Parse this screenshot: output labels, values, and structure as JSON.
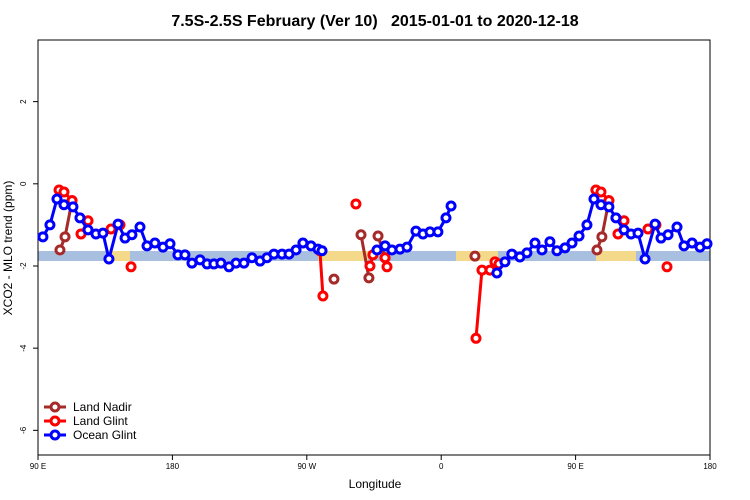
{
  "chart_data": {
    "type": "line",
    "title": "7.5S-2.5S February (Ver 10)   2015-01-01 to 2020-12-18",
    "xlabel": "Longitude",
    "ylabel": "XCO2 - MLO trend (ppm)",
    "xlim": [
      90,
      540
    ],
    "xticks": [
      {
        "value": 90,
        "label": "90 E"
      },
      180,
      {
        "value": 270,
        "label": "90 W"
      },
      {
        "value": 360,
        "label": "0"
      },
      {
        "value": 450,
        "label": "90 E"
      },
      {
        "value": 540,
        "label": "180"
      }
    ],
    "ylim": [
      -6.6,
      3.5
    ],
    "yticks": [
      2,
      0,
      -2,
      -4,
      -6
    ],
    "legend": "bottom-left",
    "series": [
      {
        "name": "Land Nadir",
        "color": "#a52a2a",
        "x": [
          104.7,
          108.1,
          112.8,
          null,
          288.2,
          null,
          306.3,
          311.6,
          null,
          317.7,
          322.4,
          null,
          382.6,
          null,
          464.3,
          467.6,
          472.3
        ],
        "values": [
          -1.61,
          -1.29,
          -0.41,
          null,
          -2.32,
          null,
          -1.24,
          -2.29,
          null,
          -1.27,
          -1.8,
          null,
          -1.76,
          null,
          -1.61,
          -1.29,
          -0.41
        ]
      },
      {
        "name": "Land Glint",
        "color": "#ff0000",
        "x": [
          104.1,
          107.4,
          112.8,
          null,
          118.8,
          123.5,
          null,
          138.9,
          144.9,
          null,
          152.3,
          null,
          278.8,
          280.8,
          null,
          302.9,
          null,
          312.3,
          314.3,
          null,
          322.4,
          323.7,
          null,
          383.3,
          387.3,
          392.7,
          396,
          398.7,
          null,
          463.6,
          467,
          472.3,
          null,
          478.4,
          482.4,
          null,
          498.5,
          503.8,
          null,
          511.2
        ],
        "values": [
          -0.15,
          -0.2,
          -0.41,
          null,
          -1.22,
          -0.9,
          null,
          -1.1,
          -1,
          null,
          -2.02,
          null,
          -1.63,
          -2.73,
          null,
          -0.49,
          null,
          -2,
          -1.73,
          null,
          -1.8,
          -2.02,
          null,
          -3.76,
          -2.1,
          -2.1,
          -1.9,
          -1.95,
          null,
          -0.15,
          -0.2,
          -0.41,
          null,
          -1.22,
          -0.9,
          null,
          -1.1,
          -1,
          null,
          -2.02
        ]
      },
      {
        "name": "Ocean Glint",
        "color": "#0000ff",
        "x": [
          93.3,
          98,
          102.7,
          107.4,
          113.4,
          118.1,
          123.5,
          128.8,
          133.5,
          137.5,
          143.6,
          148.3,
          152.9,
          158.3,
          163,
          168.3,
          173.7,
          178.4,
          183.7,
          188.4,
          193.1,
          198.5,
          203.2,
          207.8,
          212.5,
          217.9,
          222.6,
          227.9,
          233.3,
          238.7,
          243.3,
          248,
          253.4,
          258.1,
          262.8,
          267.4,
          272.8,
          277.5,
          280.2,
          null,
          317,
          322.4,
          327,
          332.4,
          337.1,
          343.1,
          347.8,
          352.5,
          357.8,
          363.2,
          366.6,
          null,
          397.3,
          402.7,
          407.3,
          412.7,
          417.4,
          422.8,
          427.5,
          432.8,
          437.5,
          442.9,
          447.6,
          452.3,
          457.6,
          462.3,
          467,
          472.3,
          477,
          482.4,
          487.1,
          491.8,
          496.5,
          503.2,
          507.2,
          511.9,
          517.9,
          522.6,
          528,
          533.3,
          538
        ],
        "values": [
          -1.29,
          -1,
          -0.37,
          -0.51,
          -0.56,
          -0.83,
          -1.12,
          -1.22,
          -1.2,
          -1.83,
          -0.98,
          -1.32,
          -1.24,
          -1.05,
          -1.51,
          -1.44,
          -1.54,
          -1.46,
          -1.73,
          -1.73,
          -1.93,
          -1.85,
          -1.95,
          -1.95,
          -1.93,
          -2.02,
          -1.93,
          -1.93,
          -1.8,
          -1.88,
          -1.8,
          -1.71,
          -1.71,
          -1.71,
          -1.61,
          -1.44,
          -1.51,
          -1.59,
          -1.63,
          null,
          -1.61,
          -1.51,
          -1.61,
          -1.59,
          -1.54,
          -1.15,
          -1.22,
          -1.17,
          -1.17,
          -0.83,
          -0.54,
          null,
          -2.17,
          -1.9,
          -1.71,
          -1.78,
          -1.68,
          -1.44,
          -1.61,
          -1.41,
          -1.63,
          -1.56,
          -1.44,
          -1.27,
          -1,
          -0.37,
          -0.51,
          -0.56,
          -0.83,
          -1.12,
          -1.22,
          -1.2,
          -1.83,
          -0.98,
          -1.32,
          -1.24,
          -1.05,
          -1.51,
          -1.44,
          -1.54,
          -1.46
        ]
      }
    ]
  }
}
